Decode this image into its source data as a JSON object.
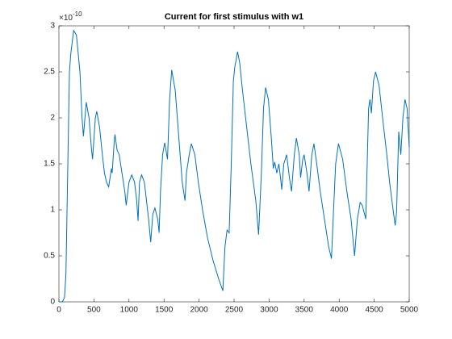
{
  "chart_data": {
    "type": "line",
    "title": "Current for first stimulus with w1",
    "y_multiplier": {
      "base": "×10",
      "exponent": "-10"
    },
    "xlim": [
      0,
      5000
    ],
    "xticks": [
      0,
      500,
      1000,
      1500,
      2000,
      2500,
      3000,
      3500,
      4000,
      4500,
      5000
    ],
    "ylim": [
      0,
      3
    ],
    "yticks": [
      0,
      0.5,
      1,
      1.5,
      2,
      2.5,
      3
    ],
    "series": [
      {
        "color": "#0072BD",
        "x": [
          0,
          50,
          80,
          100,
          150,
          170,
          210,
          250,
          300,
          330,
          350,
          390,
          430,
          460,
          480,
          520,
          540,
          580,
          620,
          650,
          680,
          710,
          750,
          760,
          790,
          800,
          830,
          860,
          900,
          940,
          960,
          1000,
          1040,
          1080,
          1110,
          1130,
          1150,
          1180,
          1220,
          1250,
          1280,
          1310,
          1340,
          1370,
          1410,
          1430,
          1450,
          1480,
          1510,
          1550,
          1580,
          1610,
          1660,
          1700,
          1730,
          1760,
          1800,
          1820,
          1860,
          1890,
          1940,
          1990,
          2050,
          2120,
          2200,
          2280,
          2340,
          2370,
          2400,
          2430,
          2460,
          2490,
          2510,
          2550,
          2580,
          2620,
          2680,
          2740,
          2810,
          2850,
          2890,
          2920,
          2950,
          2990,
          3030,
          3060,
          3080,
          3110,
          3140,
          3170,
          3180,
          3210,
          3250,
          3290,
          3320,
          3360,
          3390,
          3430,
          3450,
          3480,
          3500,
          3540,
          3570,
          3610,
          3640,
          3680,
          3730,
          3790,
          3850,
          3890,
          3920,
          3950,
          3990,
          4050,
          4110,
          4170,
          4220,
          4260,
          4300,
          4330,
          4380,
          4400,
          4420,
          4440,
          4460,
          4490,
          4520,
          4570,
          4620,
          4680,
          4720,
          4770,
          4800,
          4820,
          4850,
          4880,
          4910,
          4940,
          4970,
          5000
        ],
        "values": [
          0,
          0,
          0.05,
          0.3,
          2.5,
          2.7,
          2.95,
          2.9,
          2.5,
          2.0,
          1.8,
          2.17,
          2.0,
          1.7,
          1.55,
          2.0,
          2.07,
          1.9,
          1.6,
          1.4,
          1.3,
          1.25,
          1.45,
          1.4,
          1.75,
          1.82,
          1.65,
          1.6,
          1.4,
          1.2,
          1.05,
          1.3,
          1.38,
          1.3,
          1.1,
          0.88,
          1.3,
          1.38,
          1.3,
          1.1,
          0.9,
          0.65,
          0.95,
          1.02,
          0.9,
          0.75,
          1.2,
          1.6,
          1.73,
          1.55,
          2.2,
          2.52,
          2.3,
          1.9,
          1.6,
          1.3,
          1.1,
          1.4,
          1.6,
          1.72,
          1.6,
          1.3,
          1.0,
          0.7,
          0.45,
          0.25,
          0.12,
          0.6,
          0.78,
          0.75,
          1.5,
          2.4,
          2.55,
          2.72,
          2.6,
          2.3,
          1.9,
          1.5,
          1.1,
          0.73,
          1.4,
          2.1,
          2.33,
          2.2,
          1.8,
          1.45,
          1.52,
          1.4,
          1.5,
          1.3,
          1.22,
          1.5,
          1.6,
          1.35,
          1.2,
          1.6,
          1.78,
          1.6,
          1.35,
          1.55,
          1.6,
          1.4,
          1.2,
          1.6,
          1.72,
          1.5,
          1.2,
          0.9,
          0.6,
          0.47,
          1.0,
          1.5,
          1.72,
          1.55,
          1.2,
          0.9,
          0.5,
          0.9,
          1.08,
          1.05,
          0.9,
          1.5,
          2.1,
          2.2,
          2.05,
          2.4,
          2.5,
          2.35,
          2.0,
          1.6,
          1.3,
          1.0,
          0.83,
          0.98,
          1.85,
          1.6,
          2.0,
          2.2,
          2.1,
          1.68
        ]
      }
    ]
  }
}
